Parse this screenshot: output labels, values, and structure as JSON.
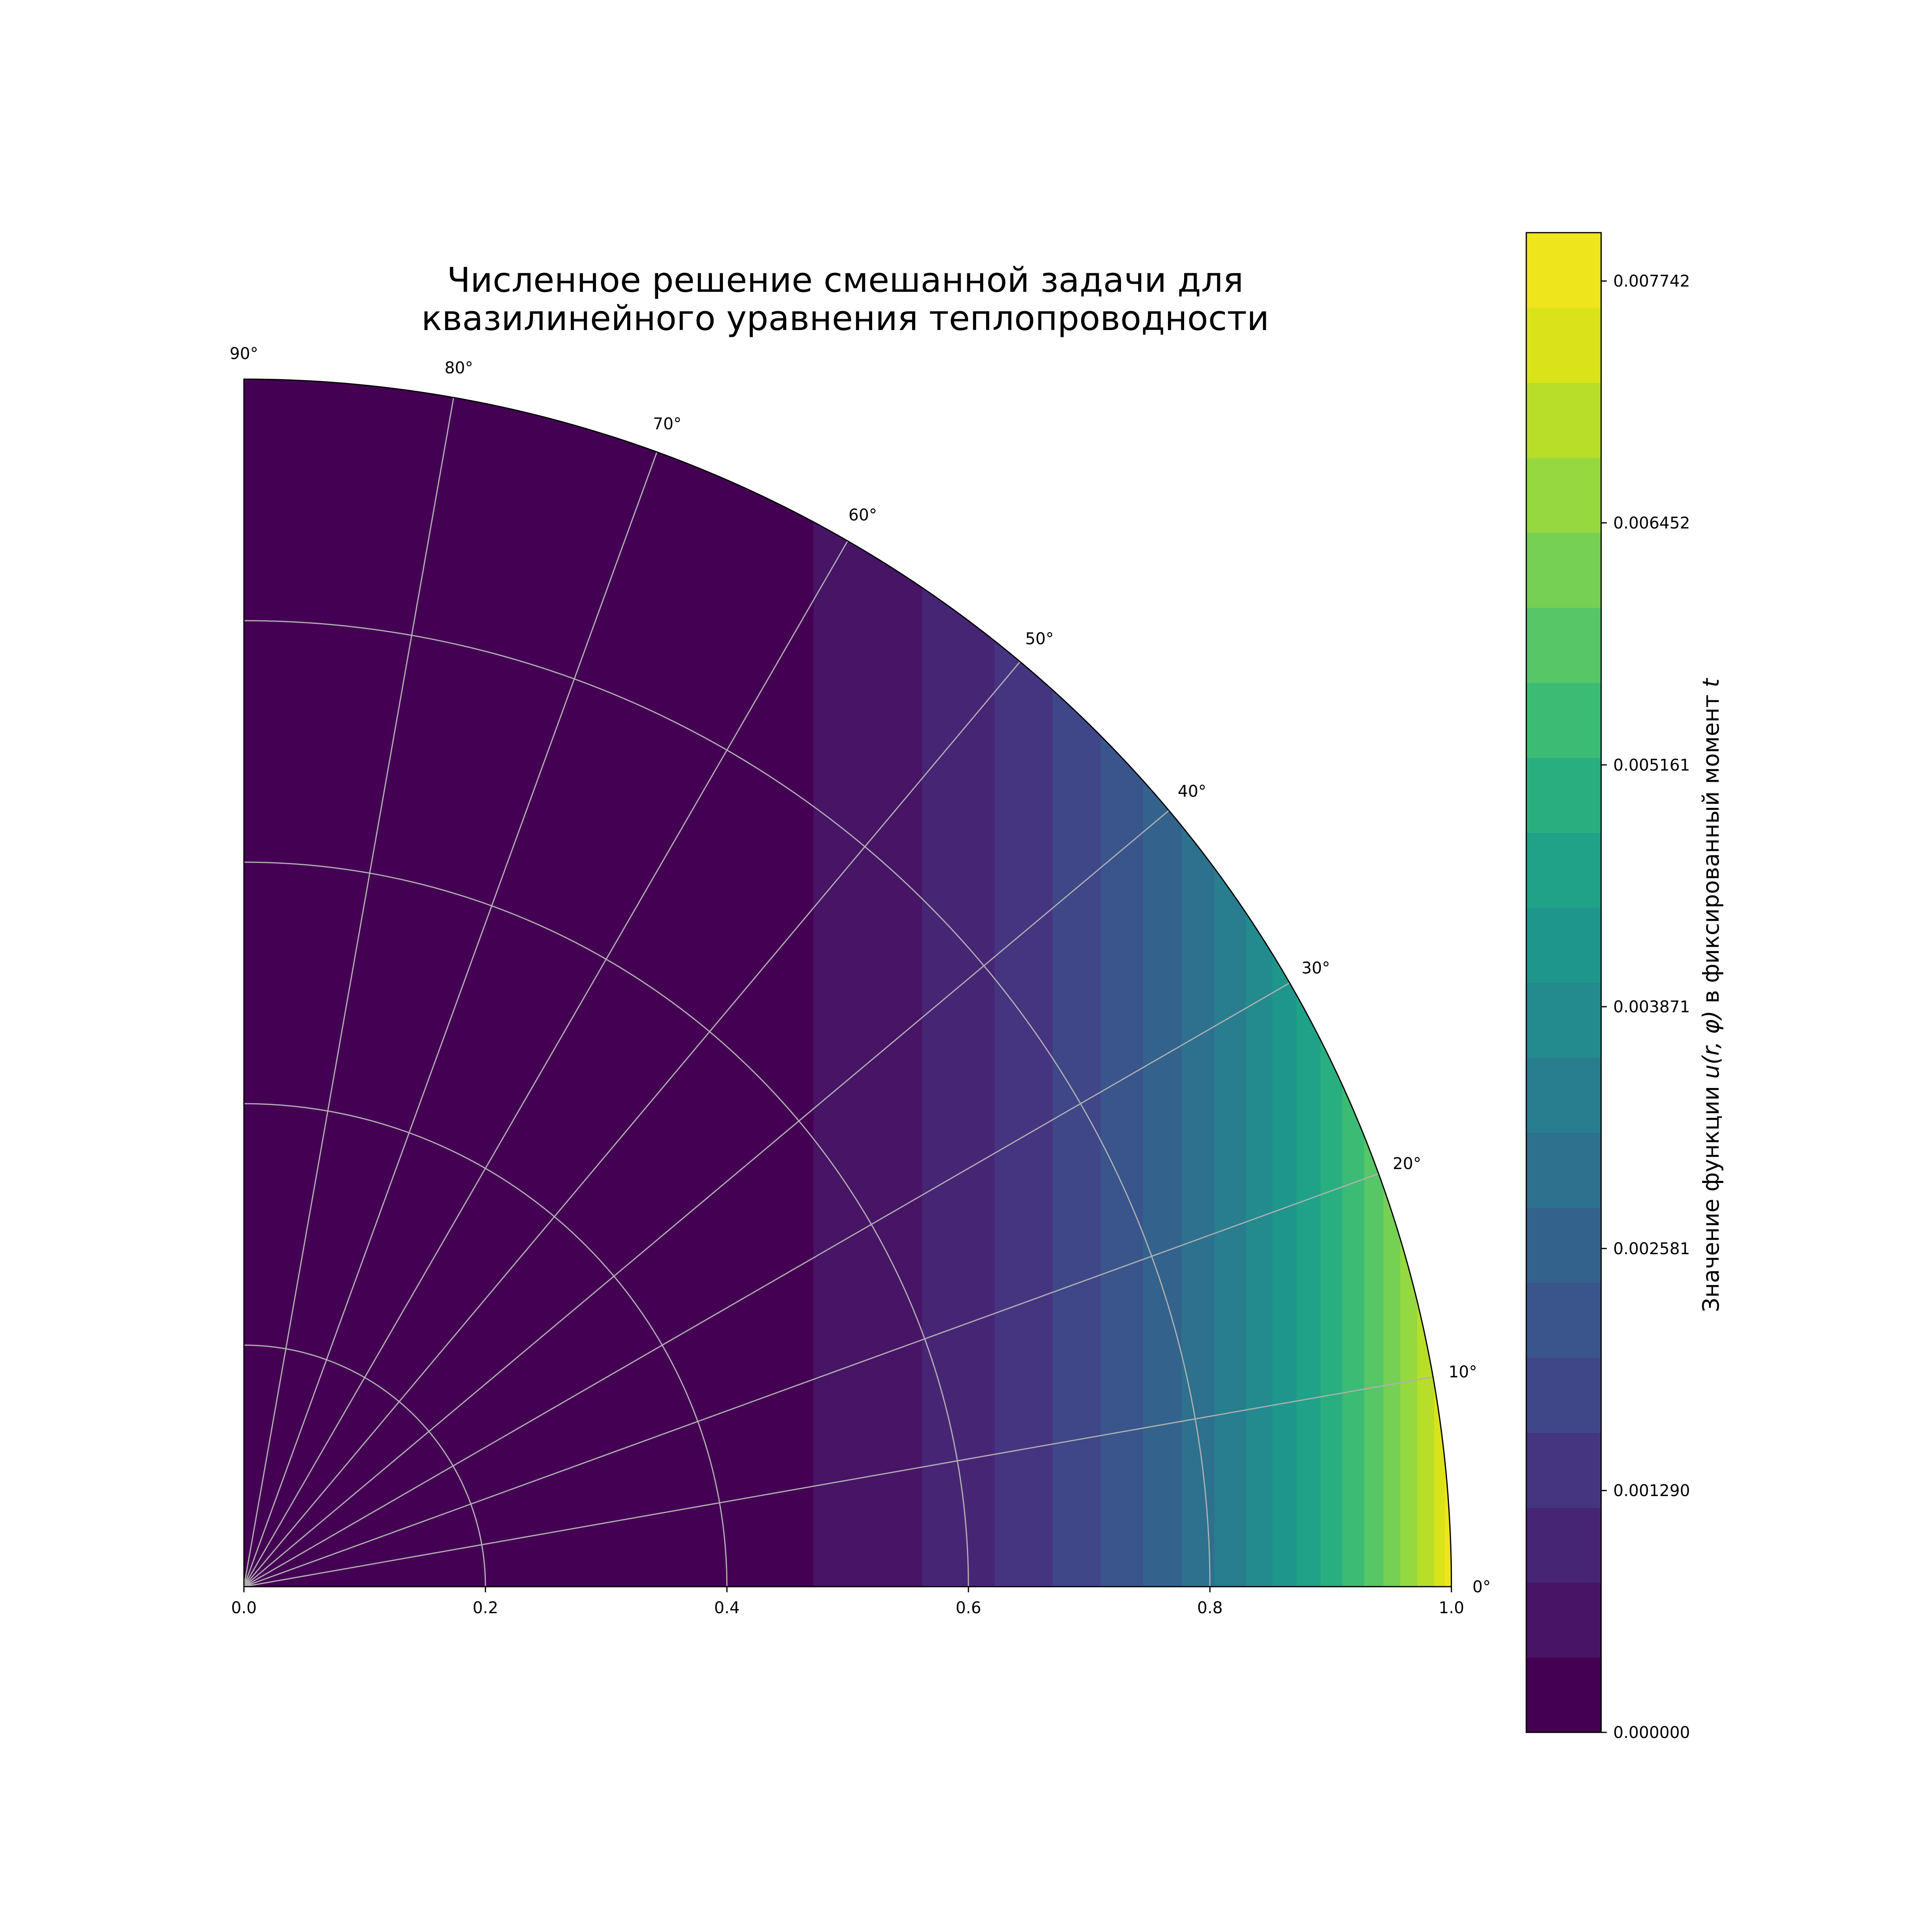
{
  "chart_data": {
    "type": "heatmap",
    "subtype": "polar-filled-contour",
    "title_lines": [
      "Численное решение смешанной задачи для",
      "квазилинейного уравнения теплопроводности"
    ],
    "radial_ticks": [
      "0.0",
      "0.2",
      "0.4",
      "0.6",
      "0.8",
      "1.0"
    ],
    "radial_values": [
      0.0,
      0.2,
      0.4,
      0.6,
      0.8,
      1.0
    ],
    "r_range": [
      0,
      1
    ],
    "theta_range_deg": [
      0,
      90
    ],
    "angle_values_deg": [
      0,
      10,
      20,
      30,
      40,
      50,
      60,
      70,
      80,
      90
    ],
    "angle_tick_labels": [
      "0°",
      "10°",
      "20°",
      "30°",
      "40°",
      "50°",
      "60°",
      "70°",
      "80°",
      "90°"
    ],
    "grid": true,
    "colormap": "viridis",
    "colorbar": {
      "label_prefix": "Значение функции ",
      "label_math": "u(r, φ)",
      "label_suffix": " в фиксированный момент ",
      "label_var": "t",
      "tick_values": [
        0.0,
        0.00129,
        0.002581,
        0.003871,
        0.005161,
        0.006452,
        0.007742
      ],
      "tick_labels": [
        "0.000000",
        "0.001290",
        "0.002581",
        "0.003871",
        "0.005161",
        "0.006452",
        "0.007742"
      ],
      "vmin": 0.0,
      "vmax": 0.008
    },
    "contour_levels_count": 20,
    "field_description_values": {
      "x_thresholds": [
        0.472,
        0.562,
        0.622,
        0.67,
        0.71,
        0.745,
        0.777,
        0.804,
        0.83,
        0.852,
        0.872,
        0.892,
        0.91,
        0.928,
        0.944,
        0.958,
        0.972,
        0.986,
        0.995
      ],
      "level_colors": [
        "#440154",
        "#471466",
        "#472575",
        "#453581",
        "#3f4788",
        "#39558c",
        "#33638d",
        "#2d718e",
        "#287d8e",
        "#238a8d",
        "#1f968b",
        "#1fa287",
        "#29af7f",
        "#3cbb75",
        "#56c667",
        "#75d054",
        "#95d840",
        "#b8de29",
        "#dae319",
        "#efe51c"
      ]
    }
  }
}
